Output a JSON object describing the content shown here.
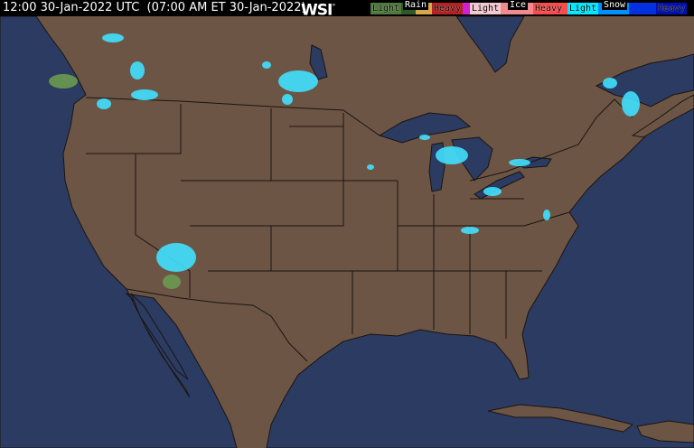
{
  "header": {
    "timestamp": "12:00 30-Jan-2022 UTC  (07:00 AM ET 30-Jan-2022)",
    "logo": "WSI",
    "logo_mark": "°"
  },
  "legend": {
    "rain": {
      "title": "Rain",
      "light": "Light",
      "heavy": "Heavy",
      "colors": [
        "#4f7a3c",
        "#2f5a28",
        "#d8a848",
        "#b82020",
        "#d020d0"
      ]
    },
    "ice": {
      "title": "Ice",
      "light": "Light",
      "heavy": "Heavy",
      "colors": [
        "#f4c8d0",
        "#f08a90",
        "#ff4a4a"
      ]
    },
    "snow": {
      "title": "Snow",
      "light": "Light",
      "heavy": "Heavy",
      "colors": [
        "#00e8ff",
        "#0090ff",
        "#0030e0",
        "#0010b0"
      ]
    }
  },
  "map": {
    "land_color": "#6d5545",
    "water_color": "#2b3b62",
    "border_color": "#1a1410",
    "snow_color": "#40e0ff",
    "rain_color": "#6a9a50"
  }
}
